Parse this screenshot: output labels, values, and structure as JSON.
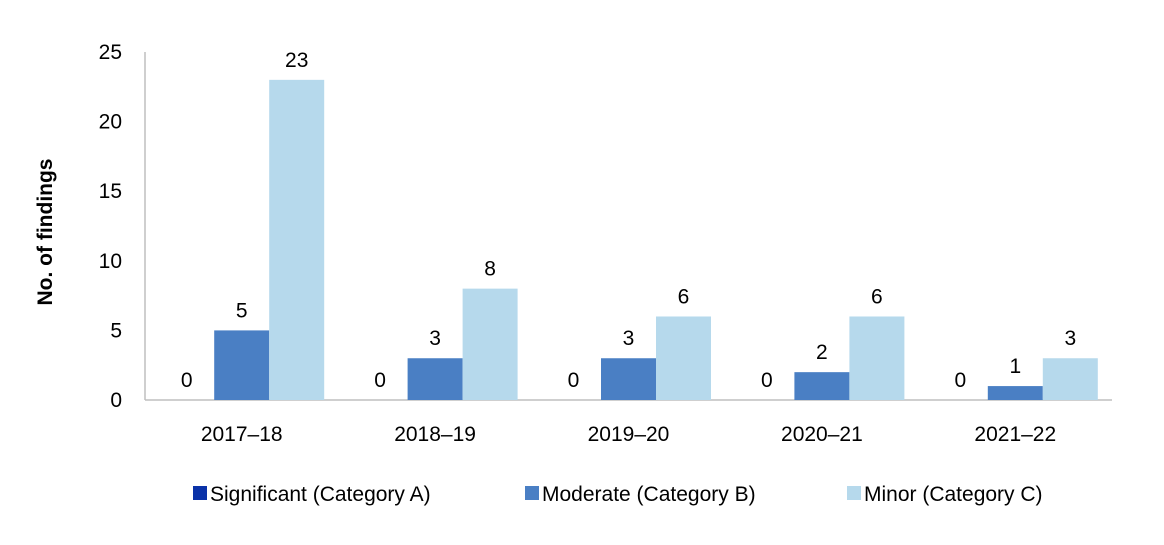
{
  "chart_data": {
    "type": "bar",
    "categories": [
      "2017–18",
      "2018–19",
      "2019–20",
      "2020–21",
      "2021–22"
    ],
    "series": [
      {
        "name": "Significant (Category A)",
        "values": [
          0,
          0,
          0,
          0,
          0
        ],
        "color": "#0a32a8"
      },
      {
        "name": "Moderate (Category B)",
        "values": [
          5,
          3,
          3,
          2,
          1
        ],
        "color": "#4a7fc4"
      },
      {
        "name": "Minor (Category C)",
        "values": [
          23,
          8,
          6,
          6,
          3
        ],
        "color": "#b6d9ec"
      }
    ],
    "title": "",
    "xlabel": "",
    "ylabel": "No. of findings",
    "ylim": [
      0,
      25
    ],
    "yticks": [
      0,
      5,
      10,
      15,
      20,
      25
    ],
    "grid": false,
    "legend_position": "bottom"
  }
}
